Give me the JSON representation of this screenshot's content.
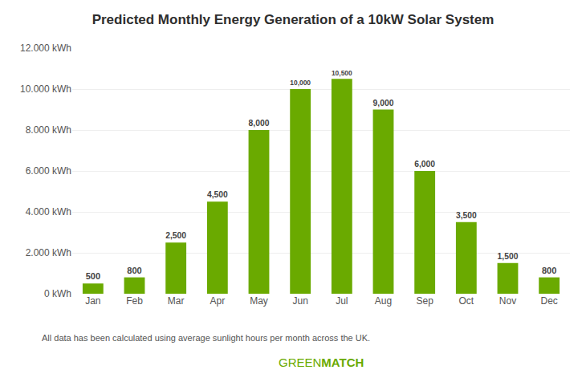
{
  "chart_data": {
    "type": "bar",
    "title": "Predicted Monthly Energy Generation of a 10kW Solar System",
    "categories": [
      "Jan",
      "Feb",
      "Mar",
      "Apr",
      "May",
      "Jun",
      "Jul",
      "Aug",
      "Sep",
      "Oct",
      "Nov",
      "Dec"
    ],
    "values": [
      500,
      800,
      2500,
      4500,
      8000,
      10000,
      10500,
      9000,
      6000,
      3500,
      1500,
      800
    ],
    "value_labels": [
      "500",
      "800",
      "2,500",
      "4,500",
      "8,000",
      "10,000",
      "10,500",
      "9,000",
      "6,000",
      "3,500",
      "1,500",
      "800"
    ],
    "data_labels": true,
    "color": "#6aaa00",
    "ylim": [
      0,
      12000
    ],
    "yticks": [
      {
        "value": 0,
        "label": "0 kWh"
      },
      {
        "value": 2000,
        "label": "2.000 kWh"
      },
      {
        "value": 4000,
        "label": "4.000 kWh"
      },
      {
        "value": 6000,
        "label": "6.000 kWh"
      },
      {
        "value": 8000,
        "label": "8.000 kWh"
      },
      {
        "value": 10000,
        "label": "10.000 kWh"
      },
      {
        "value": 12000,
        "label": "12.000 kWh"
      }
    ],
    "grid": true,
    "annotations": [
      "All data has been calculated using average sunlight hours per month across the UK.",
      "GREEN",
      "MATCH"
    ]
  }
}
